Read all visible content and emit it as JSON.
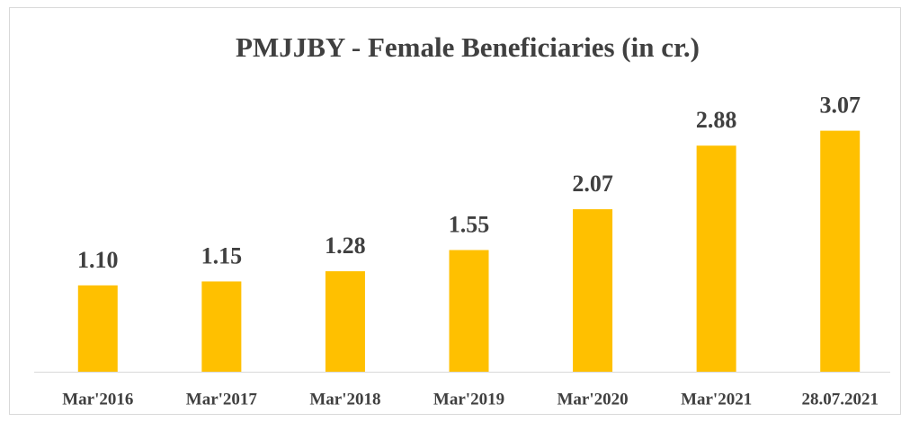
{
  "chart_data": {
    "type": "bar",
    "title": "PMJJBY - Female Beneficiaries (in cr.)",
    "categories": [
      "Mar'2016",
      "Mar'2017",
      "Mar'2018",
      "Mar'2019",
      "Mar'2020",
      "Mar'2021",
      "28.07.2021"
    ],
    "values": [
      1.1,
      1.15,
      1.28,
      1.55,
      2.07,
      2.88,
      3.07
    ],
    "value_labels": [
      "1.10",
      "1.15",
      "1.28",
      "1.55",
      "2.07",
      "2.88",
      "3.07"
    ],
    "color": "#ffc000",
    "ylim": [
      0,
      3.5
    ]
  }
}
